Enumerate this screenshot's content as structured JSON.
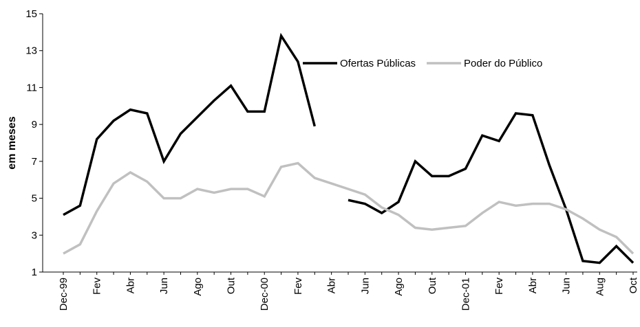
{
  "chart_data": {
    "type": "line",
    "y_label": "em meses",
    "categories": [
      "Dec-99",
      null,
      "Fev",
      null,
      "Abr",
      null,
      "Jun",
      null,
      "Ago",
      null,
      "Out",
      null,
      "Dec-00",
      null,
      "Fev",
      null,
      "Abr",
      null,
      "Jun",
      null,
      "Ago",
      null,
      "Out",
      null,
      "Dec-01",
      null,
      "Fev",
      null,
      "Abr",
      null,
      "Jun",
      null,
      "Aug",
      null,
      "Oct"
    ],
    "series": [
      {
        "name": "Ofertas Públicas",
        "color": "#000000",
        "values": [
          4.1,
          4.6,
          8.2,
          9.2,
          9.8,
          9.6,
          7.0,
          8.5,
          9.4,
          10.3,
          11.1,
          9.7,
          9.7,
          13.8,
          12.4,
          8.9,
          null,
          4.9,
          4.7,
          4.2,
          4.8,
          7.0,
          6.2,
          6.2,
          6.6,
          8.4,
          8.1,
          9.6,
          9.5,
          6.8,
          4.4,
          1.6,
          1.5,
          2.4,
          1.5
        ]
      },
      {
        "name": "Poder do Público",
        "color": "#c0c0c0",
        "values": [
          2.0,
          2.5,
          4.3,
          5.8,
          6.4,
          5.9,
          5.0,
          5.0,
          5.5,
          5.3,
          5.5,
          5.5,
          5.1,
          6.7,
          6.9,
          6.1,
          5.8,
          5.5,
          5.2,
          4.5,
          4.1,
          3.4,
          3.3,
          3.4,
          3.5,
          4.2,
          4.8,
          4.6,
          4.7,
          4.7,
          4.4,
          3.9,
          3.3,
          2.9,
          2.0
        ]
      }
    ],
    "ylim": [
      1,
      15
    ],
    "yticks": [
      1,
      3,
      5,
      7,
      9,
      11,
      13,
      15
    ],
    "grid": false,
    "legend": "top-right"
  }
}
